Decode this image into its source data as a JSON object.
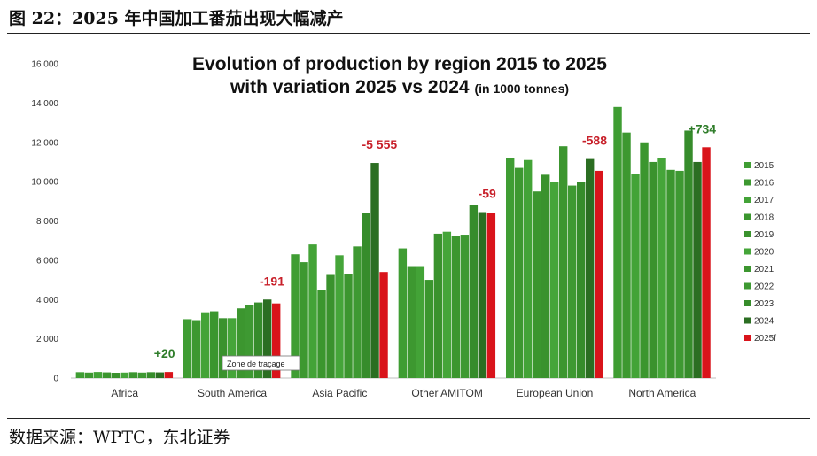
{
  "caption": "图 22：2025 年中国加工番茄出现大幅减产",
  "source": "数据来源：WPTC，东北证券",
  "tooltip": "Zone de traçage",
  "colors": {
    "green_shades": [
      "#3f9d33",
      "#3d9830",
      "#43a337",
      "#3b962e",
      "#3a922d",
      "#45a539",
      "#3c962f",
      "#3e9932",
      "#368c2b",
      "#2b6e22"
    ],
    "forecast": "#d9141b",
    "ann_negative": "#c8202a",
    "ann_positive": "#2f7d2a"
  },
  "chart_data": {
    "type": "bar",
    "title": "Evolution of production by region 2015 to 2025",
    "subtitle": "with variation 2025 vs 2024",
    "subtitle_unit": "(in 1000 tonnes)",
    "categories": [
      "Africa",
      "South America",
      "Asia Pacific",
      "Other AMITOM",
      "European Union",
      "North America"
    ],
    "ylim": [
      0,
      16000
    ],
    "yticks": [
      "0",
      "2 000",
      "4 000",
      "6 000",
      "8 000",
      "10 000",
      "12 000",
      "14 000",
      "16 000"
    ],
    "ytick_values": [
      0,
      2000,
      4000,
      6000,
      8000,
      10000,
      12000,
      14000,
      16000
    ],
    "legend_position": "right",
    "series": [
      {
        "name": "2015",
        "values": [
          300,
          3000,
          6300,
          6600,
          11200,
          13800
        ]
      },
      {
        "name": "2016",
        "values": [
          280,
          2950,
          5900,
          5700,
          10700,
          12500
        ]
      },
      {
        "name": "2017",
        "values": [
          310,
          3350,
          6800,
          5700,
          11100,
          10400
        ]
      },
      {
        "name": "2018",
        "values": [
          290,
          3400,
          4500,
          5000,
          9500,
          12000
        ]
      },
      {
        "name": "2019",
        "values": [
          270,
          3050,
          5250,
          7350,
          10350,
          11000
        ]
      },
      {
        "name": "2020",
        "values": [
          280,
          3050,
          6250,
          7450,
          10000,
          11200
        ]
      },
      {
        "name": "2021",
        "values": [
          300,
          3550,
          5300,
          7250,
          11800,
          10600
        ]
      },
      {
        "name": "2022",
        "values": [
          280,
          3700,
          6700,
          7300,
          9800,
          10550
        ]
      },
      {
        "name": "2023",
        "values": [
          300,
          3850,
          8400,
          8800,
          10000,
          12600
        ]
      },
      {
        "name": "2024",
        "values": [
          290,
          4000,
          10950,
          8450,
          11150,
          11000
        ]
      },
      {
        "name": "2025f",
        "values": [
          310,
          3800,
          5400,
          8400,
          10550,
          11750
        ]
      }
    ],
    "annotations": [
      "+20",
      "-191",
      "-5 555",
      "-59",
      "-588",
      "+734"
    ]
  }
}
